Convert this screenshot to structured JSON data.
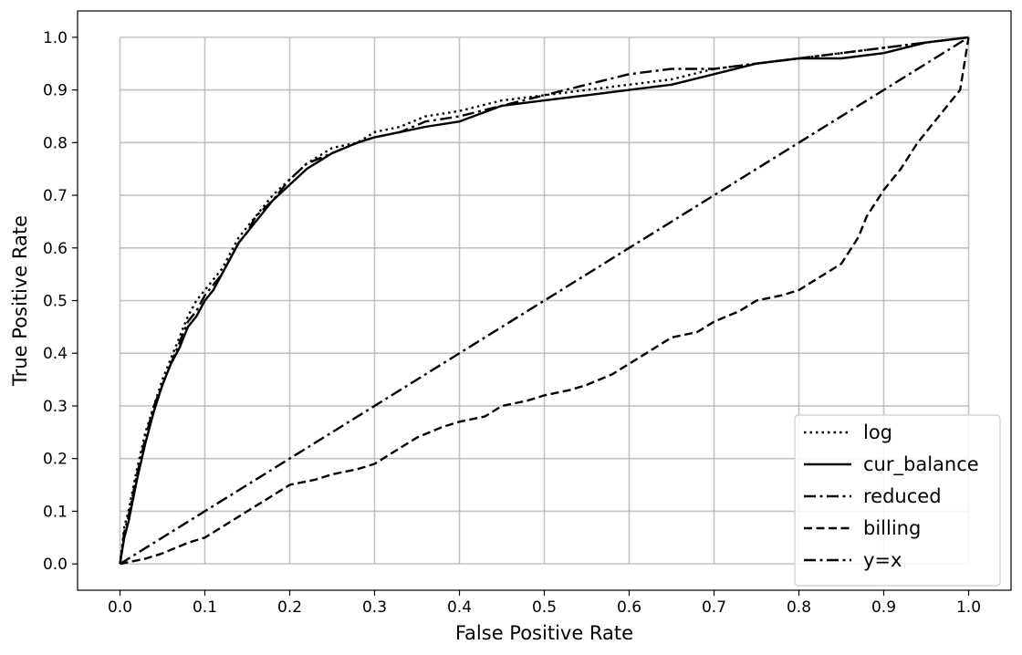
{
  "chart_data": {
    "type": "line",
    "title": "",
    "xlabel": "False Positive Rate",
    "ylabel": "True Positive Rate",
    "xlim": [
      -0.05,
      1.05
    ],
    "ylim": [
      -0.05,
      1.05
    ],
    "xticks": [
      "0.0",
      "0.1",
      "0.2",
      "0.3",
      "0.4",
      "0.5",
      "0.6",
      "0.7",
      "0.8",
      "0.9",
      "1.0"
    ],
    "yticks": [
      "0.0",
      "0.1",
      "0.2",
      "0.3",
      "0.4",
      "0.5",
      "0.6",
      "0.7",
      "0.8",
      "0.9",
      "1.0"
    ],
    "grid": true,
    "legend_position": "lower-right",
    "series": [
      {
        "name": "log",
        "dash": "dotted",
        "x": [
          0,
          0.005,
          0.01,
          0.02,
          0.03,
          0.04,
          0.05,
          0.06,
          0.07,
          0.08,
          0.09,
          0.1,
          0.11,
          0.12,
          0.13,
          0.14,
          0.15,
          0.16,
          0.18,
          0.2,
          0.22,
          0.25,
          0.28,
          0.3,
          0.33,
          0.36,
          0.4,
          0.45,
          0.5,
          0.55,
          0.6,
          0.65,
          0.7,
          0.75,
          0.8,
          0.85,
          0.9,
          0.95,
          1.0
        ],
        "y": [
          0,
          0.07,
          0.1,
          0.18,
          0.25,
          0.3,
          0.35,
          0.39,
          0.43,
          0.47,
          0.5,
          0.52,
          0.54,
          0.56,
          0.59,
          0.62,
          0.64,
          0.66,
          0.7,
          0.73,
          0.76,
          0.79,
          0.8,
          0.82,
          0.83,
          0.85,
          0.86,
          0.88,
          0.89,
          0.9,
          0.91,
          0.92,
          0.94,
          0.95,
          0.96,
          0.97,
          0.98,
          0.99,
          1.0
        ]
      },
      {
        "name": "cur_balance",
        "dash": "solid",
        "x": [
          0,
          0.005,
          0.01,
          0.02,
          0.03,
          0.04,
          0.05,
          0.06,
          0.07,
          0.08,
          0.09,
          0.1,
          0.11,
          0.12,
          0.13,
          0.14,
          0.15,
          0.16,
          0.18,
          0.2,
          0.22,
          0.25,
          0.28,
          0.3,
          0.33,
          0.36,
          0.4,
          0.45,
          0.5,
          0.55,
          0.6,
          0.65,
          0.7,
          0.75,
          0.8,
          0.85,
          0.9,
          0.95,
          1.0
        ],
        "y": [
          0,
          0.05,
          0.08,
          0.16,
          0.23,
          0.29,
          0.34,
          0.38,
          0.41,
          0.45,
          0.47,
          0.5,
          0.52,
          0.55,
          0.58,
          0.61,
          0.63,
          0.65,
          0.69,
          0.72,
          0.75,
          0.78,
          0.8,
          0.81,
          0.82,
          0.83,
          0.84,
          0.87,
          0.88,
          0.89,
          0.9,
          0.91,
          0.93,
          0.95,
          0.96,
          0.96,
          0.97,
          0.99,
          1.0
        ]
      },
      {
        "name": "reduced",
        "dash": "dashdot",
        "x": [
          0,
          0.005,
          0.01,
          0.02,
          0.03,
          0.04,
          0.05,
          0.06,
          0.07,
          0.08,
          0.09,
          0.1,
          0.11,
          0.12,
          0.13,
          0.14,
          0.15,
          0.16,
          0.18,
          0.2,
          0.22,
          0.25,
          0.28,
          0.3,
          0.33,
          0.36,
          0.4,
          0.45,
          0.5,
          0.55,
          0.6,
          0.65,
          0.7,
          0.75,
          0.8,
          0.85,
          0.9,
          0.95,
          1.0
        ],
        "y": [
          0,
          0.06,
          0.09,
          0.17,
          0.24,
          0.3,
          0.34,
          0.38,
          0.42,
          0.46,
          0.48,
          0.51,
          0.53,
          0.55,
          0.58,
          0.61,
          0.63,
          0.66,
          0.69,
          0.73,
          0.76,
          0.78,
          0.8,
          0.81,
          0.82,
          0.84,
          0.85,
          0.87,
          0.89,
          0.91,
          0.93,
          0.94,
          0.94,
          0.95,
          0.96,
          0.97,
          0.98,
          0.99,
          1.0
        ]
      },
      {
        "name": "billing",
        "dash": "dashed",
        "x": [
          0,
          0.03,
          0.05,
          0.08,
          0.1,
          0.13,
          0.15,
          0.18,
          0.2,
          0.23,
          0.25,
          0.28,
          0.3,
          0.33,
          0.35,
          0.38,
          0.4,
          0.43,
          0.45,
          0.48,
          0.5,
          0.53,
          0.55,
          0.58,
          0.6,
          0.63,
          0.65,
          0.68,
          0.7,
          0.73,
          0.75,
          0.78,
          0.8,
          0.83,
          0.85,
          0.87,
          0.88,
          0.9,
          0.92,
          0.94,
          0.96,
          0.98,
          0.99,
          1.0
        ],
        "y": [
          0,
          0.01,
          0.02,
          0.04,
          0.05,
          0.08,
          0.1,
          0.13,
          0.15,
          0.16,
          0.17,
          0.18,
          0.19,
          0.22,
          0.24,
          0.26,
          0.27,
          0.28,
          0.3,
          0.31,
          0.32,
          0.33,
          0.34,
          0.36,
          0.38,
          0.41,
          0.43,
          0.44,
          0.46,
          0.48,
          0.5,
          0.51,
          0.52,
          0.55,
          0.57,
          0.62,
          0.66,
          0.71,
          0.75,
          0.8,
          0.84,
          0.88,
          0.9,
          1.0
        ]
      },
      {
        "name": "y=x",
        "dash": "dashdot",
        "x": [
          0,
          1
        ],
        "y": [
          0,
          1
        ]
      }
    ]
  }
}
